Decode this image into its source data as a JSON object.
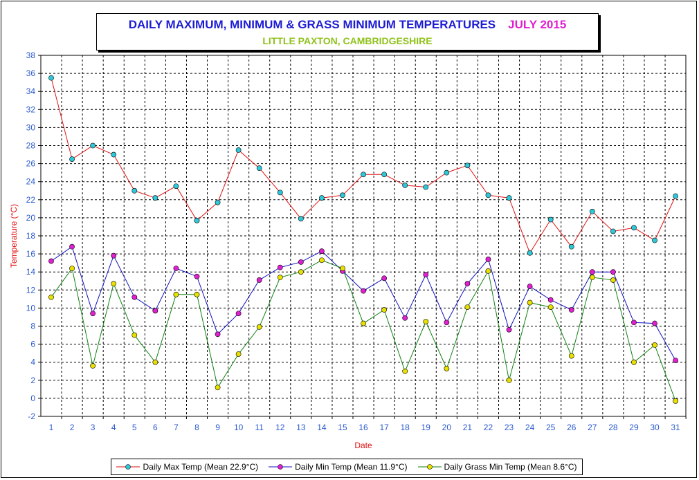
{
  "title": {
    "main": "DAILY MAXIMUM, MINIMUM & GRASS MINIMUM TEMPERATURES",
    "month": "JULY 2015",
    "subtitle": "LITTLE PAXTON, CAMBRIDGESHIRE"
  },
  "chart_data": {
    "type": "line",
    "title": "DAILY MAXIMUM, MINIMUM & GRASS MINIMUM TEMPERATURES",
    "xlabel": "Date",
    "ylabel": "Temperature (°C)",
    "ylim": [
      -2,
      38
    ],
    "xlim": [
      1,
      31
    ],
    "y_ticks": [
      -2,
      0,
      2,
      4,
      6,
      8,
      10,
      12,
      14,
      16,
      18,
      20,
      22,
      24,
      26,
      28,
      30,
      32,
      34,
      36,
      38
    ],
    "categories": [
      1,
      2,
      3,
      4,
      5,
      6,
      7,
      8,
      9,
      10,
      11,
      12,
      13,
      14,
      15,
      16,
      17,
      18,
      19,
      20,
      21,
      22,
      23,
      24,
      25,
      26,
      27,
      28,
      29,
      30,
      31
    ],
    "grid": true,
    "legend_position": "bottom",
    "series": [
      {
        "name": "Daily Max Temp (Mean 22.9°C)",
        "line_color": "#e01010",
        "marker_color": "#2ec8d8",
        "values": [
          35.5,
          26.5,
          28.0,
          27.0,
          23.0,
          22.2,
          23.5,
          19.7,
          21.7,
          27.5,
          25.5,
          22.8,
          19.9,
          22.2,
          22.5,
          24.8,
          24.8,
          23.6,
          23.4,
          25.0,
          25.8,
          22.5,
          22.2,
          16.1,
          19.8,
          16.8,
          20.7,
          18.5,
          18.9,
          17.5,
          22.4
        ]
      },
      {
        "name": "Daily Min Temp (Mean 11.9°C)",
        "line_color": "#1010c0",
        "marker_color": "#e020d0",
        "values": [
          15.2,
          16.8,
          9.4,
          15.8,
          11.2,
          9.7,
          14.4,
          13.5,
          7.1,
          9.4,
          13.1,
          14.5,
          15.1,
          16.3,
          14.1,
          11.9,
          13.3,
          8.9,
          13.7,
          8.4,
          12.7,
          15.4,
          7.6,
          12.4,
          10.9,
          9.8,
          14.0,
          14.0,
          8.4,
          8.3,
          4.2
        ]
      },
      {
        "name": "Daily Grass Min Temp (Mean 8.6°C)",
        "line_color": "#108010",
        "marker_color": "#e8e000",
        "values": [
          11.2,
          14.4,
          3.6,
          12.7,
          7.0,
          4.0,
          11.5,
          11.5,
          1.2,
          4.9,
          7.9,
          13.4,
          14.0,
          15.3,
          14.4,
          8.3,
          9.8,
          3.0,
          8.5,
          3.3,
          10.1,
          14.1,
          2.0,
          10.6,
          10.1,
          4.7,
          13.4,
          13.1,
          4.0,
          5.9,
          -0.3
        ]
      }
    ],
    "axis_color": "#e01010",
    "tick_label_color": "#2a5ad0"
  }
}
